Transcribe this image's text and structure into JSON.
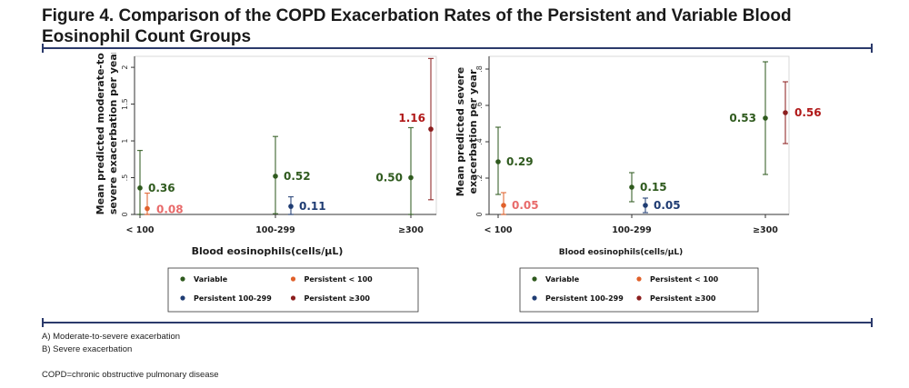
{
  "title": "Figure 4. Comparison of the COPD Exacerbation Rates of the Persistent and Variable Blood Eosinophil Count Groups",
  "colors": {
    "variable": "#2f5a1e",
    "persistent_lt100": "#e0602a",
    "persistent_100_299": "#1f3c73",
    "persistent_ge300": "#8b1e1e",
    "label_lt100": "#e86a6a",
    "label_ge300": "#b01818",
    "rule": "#2b3a6b"
  },
  "chart_data": [
    {
      "type": "scatter",
      "title": "",
      "xlabel": "Blood eosinophils(cells/µL)",
      "ylabel": [
        "Mean predicted moderate-to-",
        "severe exacerbation per year"
      ],
      "categories": [
        "< 100",
        "100-299",
        "≥300"
      ],
      "ylim": [
        0,
        2.1
      ],
      "yticks": [
        "0",
        ".5",
        "1",
        "1.5",
        "2"
      ],
      "ytick_values": [
        0,
        0.5,
        1,
        1.5,
        2
      ],
      "series": [
        {
          "name": "Variable",
          "points": [
            {
              "category": "< 100",
              "value": 0.36,
              "ci": [
                0.0,
                0.87
              ],
              "label": "0.36"
            },
            {
              "category": "100-299",
              "value": 0.52,
              "ci": [
                0.01,
                1.06
              ],
              "label": "0.52"
            },
            {
              "category": "≥300",
              "value": 0.5,
              "ci": [
                0.0,
                1.18
              ],
              "label": "0.50"
            }
          ]
        },
        {
          "name": "Persistent < 100",
          "points": [
            {
              "category": "< 100",
              "value": 0.08,
              "ci": [
                0.0,
                0.29
              ],
              "label": "0.08"
            }
          ]
        },
        {
          "name": "Persistent  100-299",
          "points": [
            {
              "category": "100-299",
              "value": 0.11,
              "ci": [
                0.0,
                0.24
              ],
              "label": "0.11"
            }
          ]
        },
        {
          "name": "Persistent  ≥300",
          "points": [
            {
              "category": "≥300",
              "value": 1.16,
              "ci": [
                0.2,
                2.12
              ],
              "label": "1.16"
            }
          ]
        }
      ],
      "legend": [
        "Variable",
        "Persistent < 100",
        "Persistent  100-299",
        "Persistent  ≥300"
      ],
      "legend_position": "bottom"
    },
    {
      "type": "scatter",
      "title": "",
      "xlabel": "Blood eosinophils(cells/µL)",
      "ylabel": [
        "Mean predicted severe",
        "exacerbation per year"
      ],
      "categories": [
        "< 100",
        "100-299",
        "≥300"
      ],
      "ylim": [
        0,
        0.85
      ],
      "yticks": [
        "0",
        ".2",
        ".4",
        ".6",
        ".8"
      ],
      "ytick_values": [
        0,
        0.2,
        0.4,
        0.6,
        0.8
      ],
      "series": [
        {
          "name": "Variable",
          "points": [
            {
              "category": "< 100",
              "value": 0.29,
              "ci": [
                0.11,
                0.48
              ],
              "label": "0.29"
            },
            {
              "category": "100-299",
              "value": 0.15,
              "ci": [
                0.07,
                0.23
              ],
              "label": "0.15"
            },
            {
              "category": "≥300",
              "value": 0.53,
              "ci": [
                0.22,
                0.84
              ],
              "label": "0.53"
            }
          ]
        },
        {
          "name": "Persistent < 100",
          "points": [
            {
              "category": "< 100",
              "value": 0.05,
              "ci": [
                0.0,
                0.12
              ],
              "label": "0.05"
            }
          ]
        },
        {
          "name": "Persistent  100-299",
          "points": [
            {
              "category": "100-299",
              "value": 0.05,
              "ci": [
                0.01,
                0.09
              ],
              "label": "0.05"
            }
          ]
        },
        {
          "name": "Persistent  ≥300",
          "points": [
            {
              "category": "≥300",
              "value": 0.56,
              "ci": [
                0.39,
                0.73
              ],
              "label": "0.56"
            }
          ]
        }
      ],
      "legend": [
        "Variable",
        "Persistent < 100",
        "Persistent  100-299",
        "Persistent  ≥300"
      ],
      "legend_position": "bottom"
    }
  ],
  "footnotes": {
    "a": "A) Moderate-to-severe exacerbation",
    "b": "B) Severe exacerbation",
    "abbr": "COPD=chronic obstructive pulmonary disease"
  }
}
